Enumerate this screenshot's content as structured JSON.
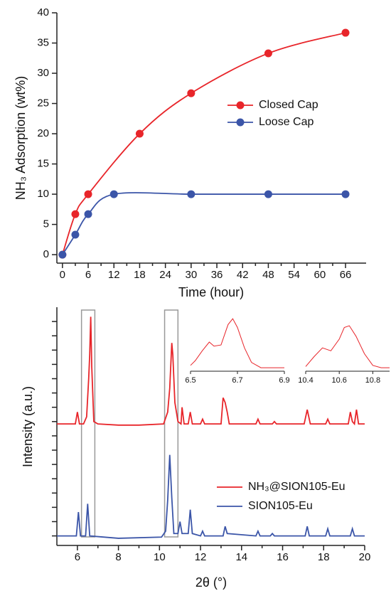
{
  "chart_data": [
    {
      "type": "line",
      "xlabel": "Time (hour)",
      "ylabel": "NH₃ Adsorption (wt%)",
      "xlim": [
        -1.3,
        70.8
      ],
      "xticks": [
        0,
        6,
        12,
        18,
        24,
        30,
        36,
        42,
        48,
        54,
        60,
        66
      ],
      "ylim": [
        -1.4,
        40
      ],
      "yticks": [
        0,
        5,
        10,
        15,
        20,
        25,
        30,
        35,
        40
      ],
      "series": [
        {
          "name": "Closed Cap",
          "color": "#e8252a",
          "x": [
            0,
            3,
            6,
            18,
            30,
            48,
            66
          ],
          "values": [
            0,
            6.7,
            10,
            20,
            26.7,
            33.3,
            36.7
          ]
        },
        {
          "name": "Loose Cap",
          "color": "#3b55a8",
          "x": [
            0,
            3,
            6,
            12,
            30,
            48,
            66
          ],
          "values": [
            0,
            3.3,
            6.7,
            10,
            10,
            10,
            10
          ]
        }
      ]
    },
    {
      "type": "line",
      "xlabel": "2θ (°)",
      "ylabel": "Intensity (a.u.)",
      "xlim": [
        5,
        20
      ],
      "xticks": [
        6,
        8,
        10,
        12,
        14,
        16,
        18,
        20
      ],
      "ylim": [
        0,
        100
      ],
      "yticks": [
        4,
        10,
        16,
        22,
        28,
        34,
        40,
        46,
        52,
        58,
        64,
        70,
        76,
        82,
        88,
        94
      ],
      "highlights": [
        [
          6.2,
          6.85
        ],
        [
          10.25,
          10.9
        ]
      ],
      "series": [
        {
          "name": "NH₃@SION105-Eu",
          "color": "#e8252a",
          "x": [
            5.0,
            5.9,
            6.0,
            6.1,
            6.3,
            6.45,
            6.55,
            6.6,
            6.65,
            6.7,
            6.8,
            7.0,
            8,
            9,
            10.2,
            10.4,
            10.5,
            10.6,
            10.65,
            10.75,
            10.9,
            11.05,
            11.1,
            11.2,
            11.4,
            11.5,
            11.6,
            12,
            12.1,
            12.2,
            13.0,
            13.1,
            13.2,
            13.3,
            13.4,
            13.6,
            14.7,
            14.8,
            14.9,
            15.5,
            15.6,
            15.7,
            17.05,
            17.2,
            17.35,
            18.1,
            18.2,
            18.3,
            19.2,
            19.3,
            19.4,
            19.5,
            19.6,
            19.7,
            20
          ],
          "values": [
            51,
            51,
            56,
            51,
            51,
            54,
            70,
            80,
            96,
            75,
            52,
            51,
            50.5,
            50.5,
            51,
            56,
            66,
            85,
            80,
            60,
            52,
            51,
            58,
            51,
            51,
            56,
            51,
            51,
            53,
            51,
            51,
            62,
            60,
            56,
            51,
            51,
            51,
            53,
            51,
            51,
            52,
            51,
            51,
            57,
            51,
            51,
            53,
            51,
            51,
            56,
            52,
            51,
            57,
            51,
            51
          ]
        },
        {
          "name": "SION105-Eu",
          "color": "#3b55a8",
          "x": [
            5,
            5.95,
            6.05,
            6.15,
            6.4,
            6.5,
            6.6,
            8,
            10.1,
            10.3,
            10.4,
            10.5,
            10.6,
            10.7,
            10.9,
            11.0,
            11.1,
            11.4,
            11.5,
            11.6,
            12,
            12.1,
            12.2,
            13.1,
            13.2,
            13.3,
            14.7,
            14.8,
            14.9,
            15.4,
            15.5,
            15.6,
            17.1,
            17.2,
            17.3,
            18.1,
            18.2,
            18.3,
            19.3,
            19.4,
            19.5,
            20
          ],
          "values": [
            4,
            4,
            14,
            4,
            4,
            17.5,
            4,
            3,
            3.5,
            6,
            19,
            38,
            20,
            5,
            5,
            10,
            5,
            5,
            15,
            5,
            4,
            6,
            4,
            4,
            8,
            5,
            4,
            6,
            4,
            4,
            5,
            4,
            4,
            8,
            4,
            4,
            7,
            4,
            4,
            7,
            4,
            4
          ]
        }
      ]
    },
    {
      "type": "line",
      "xlim": [
        6.5,
        6.9
      ],
      "xticks": [
        6.5,
        6.7,
        6.9
      ],
      "ylim": [
        0,
        100
      ],
      "series": [
        {
          "color": "#e8252a",
          "x": [
            6.5,
            6.52,
            6.55,
            6.58,
            6.6,
            6.63,
            6.66,
            6.68,
            6.7,
            6.73,
            6.76,
            6.8,
            6.9
          ],
          "values": [
            10,
            18,
            35,
            50,
            43,
            45,
            80,
            90,
            75,
            40,
            15,
            6,
            6
          ]
        }
      ]
    },
    {
      "type": "line",
      "xlim": [
        10.4,
        10.9
      ],
      "xticks": [
        10.4,
        10.6,
        10.8
      ],
      "ylim": [
        0,
        100
      ],
      "series": [
        {
          "color": "#e8252a",
          "x": [
            10.4,
            10.45,
            10.5,
            10.55,
            10.6,
            10.63,
            10.66,
            10.7,
            10.75,
            10.8,
            10.85,
            10.9
          ],
          "values": [
            8,
            25,
            40,
            35,
            55,
            75,
            78,
            60,
            30,
            10,
            6,
            6
          ]
        }
      ]
    }
  ]
}
